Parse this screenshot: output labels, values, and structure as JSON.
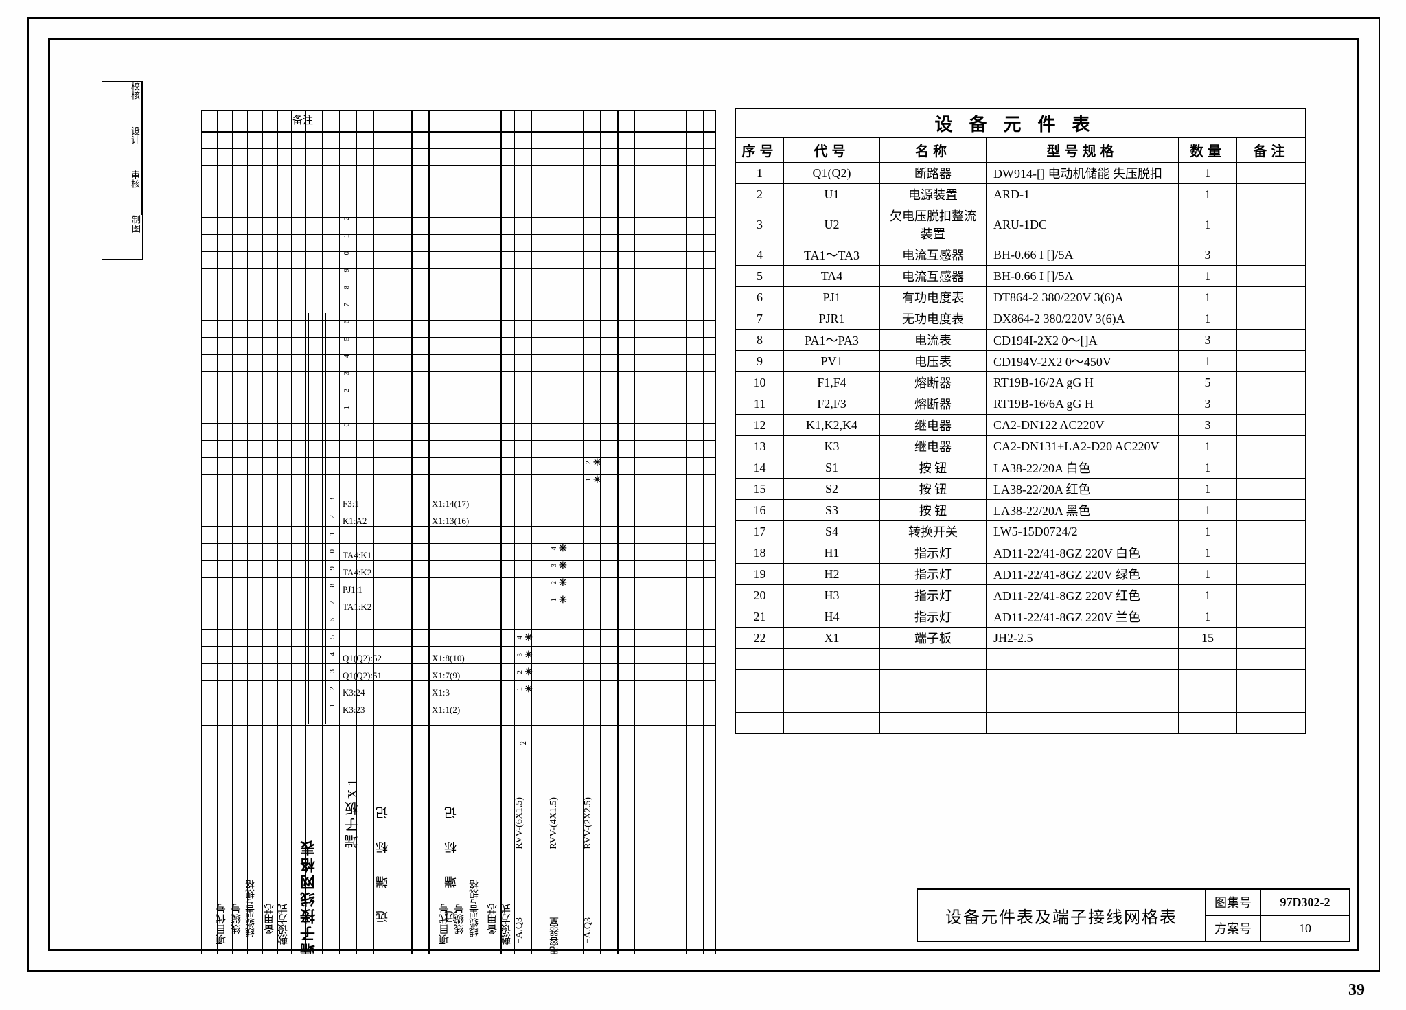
{
  "page_number": "39",
  "equipment_table": {
    "title": "设备元件表",
    "columns": [
      "序号",
      "代号",
      "名称",
      "型号规格",
      "数量",
      "备注"
    ],
    "rows": [
      [
        "1",
        "Q1(Q2)",
        "断路器",
        "DW914-[] 电动机储能 失压脱扣",
        "1",
        ""
      ],
      [
        "2",
        "U1",
        "电源装置",
        "ARD-1",
        "1",
        ""
      ],
      [
        "3",
        "U2",
        "欠电压脱扣整流装置",
        "ARU-1DC",
        "1",
        ""
      ],
      [
        "4",
        "TA1～TA3",
        "电流互感器",
        "BH-0.66 I []/5A",
        "3",
        ""
      ],
      [
        "5",
        "TA4",
        "电流互感器",
        "BH-0.66 I []/5A",
        "1",
        ""
      ],
      [
        "6",
        "PJ1",
        "有功电度表",
        "DT864-2 380/220V 3(6)A",
        "1",
        ""
      ],
      [
        "7",
        "PJR1",
        "无功电度表",
        "DX864-2 380/220V 3(6)A",
        "1",
        ""
      ],
      [
        "8",
        "PA1～PA3",
        "电流表",
        "CD194I-2X2  0～[]A",
        "3",
        ""
      ],
      [
        "9",
        "PV1",
        "电压表",
        "CD194V-2X2  0～450V",
        "1",
        ""
      ],
      [
        "10",
        "F1,F4",
        "熔断器",
        "RT19B-16/2A gG H",
        "5",
        ""
      ],
      [
        "11",
        "F2,F3",
        "熔断器",
        "RT19B-16/6A gG H",
        "3",
        ""
      ],
      [
        "12",
        "K1,K2,K4",
        "继电器",
        "CA2-DN122     AC220V",
        "3",
        ""
      ],
      [
        "13",
        "K3",
        "继电器",
        "CA2-DN131+LA2-D20   AC220V",
        "1",
        ""
      ],
      [
        "14",
        "S1",
        "按 钮",
        "LA38-22/20A     白色",
        "1",
        ""
      ],
      [
        "15",
        "S2",
        "按 钮",
        "LA38-22/20A     红色",
        "1",
        ""
      ],
      [
        "16",
        "S3",
        "按 钮",
        "LA38-22/20A     黑色",
        "1",
        ""
      ],
      [
        "17",
        "S4",
        "转换开关",
        "LW5-15D0724/2",
        "1",
        ""
      ],
      [
        "18",
        "H1",
        "指示灯",
        "AD11-22/41-8GZ 220V 白色",
        "1",
        ""
      ],
      [
        "19",
        "H2",
        "指示灯",
        "AD11-22/41-8GZ 220V 绿色",
        "1",
        ""
      ],
      [
        "20",
        "H3",
        "指示灯",
        "AD11-22/41-8GZ 220V 红色",
        "1",
        ""
      ],
      [
        "21",
        "H4",
        "指示灯",
        "AD11-22/41-8GZ 220V 兰色",
        "1",
        ""
      ],
      [
        "22",
        "X1",
        "端子板",
        "JH2-2.5",
        "15",
        ""
      ],
      [
        "",
        "",
        "",
        "",
        "",
        ""
      ],
      [
        "",
        "",
        "",
        "",
        "",
        ""
      ],
      [
        "",
        "",
        "",
        "",
        "",
        ""
      ],
      [
        "",
        "",
        "",
        "",
        "",
        ""
      ]
    ]
  },
  "title_block": {
    "main": "设备元件表及端子接线网格表",
    "set_label": "图集号",
    "set_val": "97D302-2",
    "scheme_label": "方案号",
    "scheme_val": "10"
  },
  "wiring": {
    "header_left": "备注",
    "main_label": "端子接线网格表",
    "board_label": "端子板X1",
    "footer_cols_left": [
      "项目代号",
      "线缆号",
      "线缆型号规格",
      "备用芯",
      "敷设方式"
    ],
    "footer_mid_label": "远  端  标  记",
    "footer_cols_right": [
      "项目代号",
      "线缆号",
      "线缆型号规格",
      "备用芯",
      "敷设方式"
    ],
    "right_section_label": "远  端  标  记",
    "terminal_rows": [
      {
        "n": "1",
        "a": "K3:23",
        "b": "X1:1(2)"
      },
      {
        "n": "2",
        "a": "K3:24",
        "b": "X1:3"
      },
      {
        "n": "3",
        "a": "Q1(Q2):51",
        "b": "X1:7(9)"
      },
      {
        "n": "4",
        "a": "Q1(Q2):52",
        "b": "X1:8(10)"
      },
      {
        "n": "5",
        "a": "",
        "b": ""
      },
      {
        "n": "6",
        "a": "",
        "b": ""
      },
      {
        "n": "7",
        "a": "TA1:K2",
        "b": ""
      },
      {
        "n": "8",
        "a": "PJ1:1",
        "b": ""
      },
      {
        "n": "9",
        "a": "TA4:K2",
        "b": ""
      },
      {
        "n": "0",
        "a": "TA4:K1",
        "b": ""
      },
      {
        "n": "1",
        "a": "",
        "b": ""
      },
      {
        "n": "2",
        "a": "K1:A2",
        "b": "X1:13(16)"
      },
      {
        "n": "3",
        "a": "F3:1",
        "b": "X1:14(17)"
      }
    ],
    "upper_numbers": [
      "0",
      "1",
      "2",
      "3",
      "4",
      "5",
      "6",
      "7",
      "8",
      "9",
      "0",
      "1",
      "2"
    ],
    "cable_specs": [
      "RVV-(6X1.5)",
      "RVV-(4X1.5)",
      "RVV-(2X2.5)"
    ],
    "projects": [
      "+A.Q3",
      "电容器室",
      "+A.Q3"
    ],
    "spare": "2",
    "strike_nums_right": [
      "1",
      "2",
      "3",
      "4"
    ],
    "strike_nums_right2": [
      "1",
      "2",
      "3",
      "4"
    ],
    "strike_nums_top": [
      "1",
      "2"
    ]
  },
  "meta_side": {
    "rows": [
      "校核",
      "设计",
      "审核",
      "制图"
    ]
  }
}
